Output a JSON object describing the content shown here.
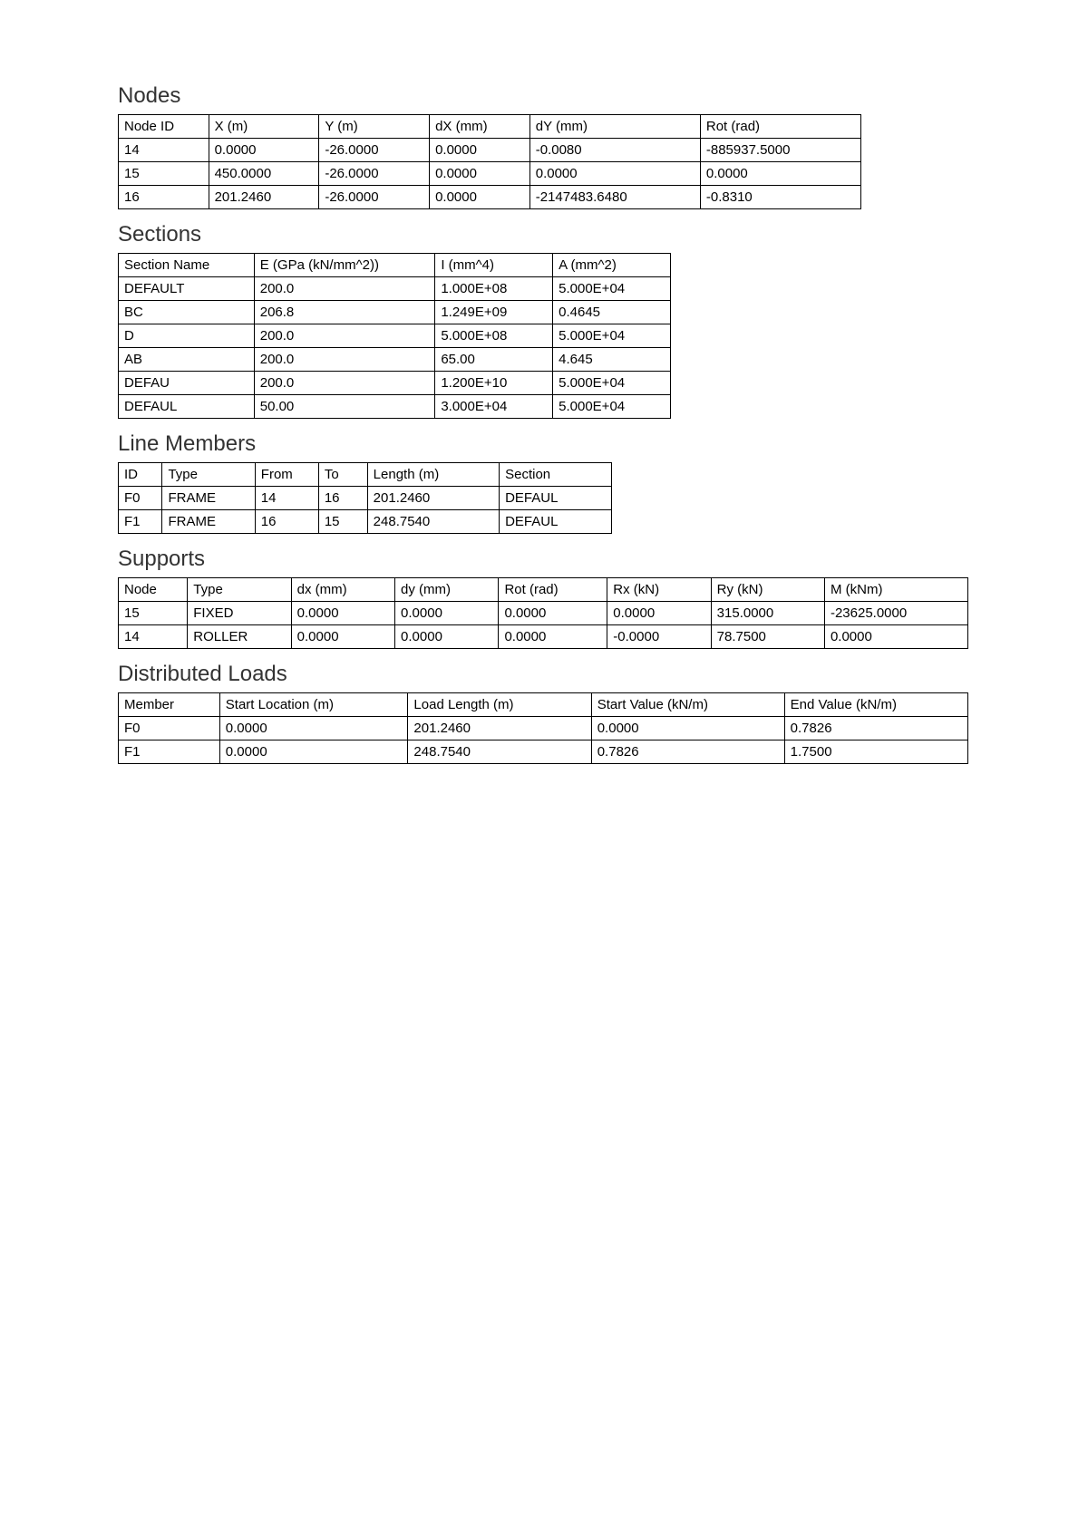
{
  "nodes": {
    "title": "Nodes",
    "headers": [
      "Node ID",
      "X (m)",
      "Y (m)",
      "dX (mm)",
      "dY (mm)",
      "Rot (rad)"
    ],
    "rows": [
      [
        "14",
        "0.0000",
        "-26.0000",
        "0.0000",
        "-0.0080",
        "-885937.5000"
      ],
      [
        "15",
        "450.0000",
        "-26.0000",
        "0.0000",
        "0.0000",
        "0.0000"
      ],
      [
        "16",
        "201.2460",
        "-26.0000",
        "0.0000",
        "-2147483.6480",
        "-0.8310"
      ]
    ]
  },
  "sections": {
    "title": "Sections",
    "headers": [
      "Section Name",
      "E (GPa (kN/mm^2))",
      "I (mm^4)",
      "A (mm^2)"
    ],
    "rows": [
      [
        "DEFAULT",
        "200.0",
        "1.000E+08",
        "5.000E+04"
      ],
      [
        "BC",
        "206.8",
        "1.249E+09",
        "0.4645"
      ],
      [
        "D",
        "200.0",
        "5.000E+08",
        "5.000E+04"
      ],
      [
        "AB",
        "200.0",
        "65.00",
        "4.645"
      ],
      [
        "DEFAU",
        "200.0",
        "1.200E+10",
        "5.000E+04"
      ],
      [
        "DEFAUL",
        "50.00",
        "3.000E+04",
        "5.000E+04"
      ]
    ]
  },
  "members": {
    "title": "Line Members",
    "headers": [
      "ID",
      "Type",
      "From",
      "To",
      "Length (m)",
      "Section"
    ],
    "rows": [
      [
        "F0",
        "FRAME",
        "14",
        "16",
        "201.2460",
        "DEFAUL"
      ],
      [
        "F1",
        "FRAME",
        "16",
        "15",
        "248.7540",
        "DEFAUL"
      ]
    ]
  },
  "supports": {
    "title": "Supports",
    "headers": [
      "Node",
      "Type",
      "dx (mm)",
      "dy (mm)",
      "Rot (rad)",
      "Rx (kN)",
      "Ry (kN)",
      "M (kNm)"
    ],
    "rows": [
      [
        "15",
        "FIXED",
        "0.0000",
        "0.0000",
        "0.0000",
        "0.0000",
        "315.0000",
        "-23625.0000"
      ],
      [
        "14",
        "ROLLER",
        "0.0000",
        "0.0000",
        "0.0000",
        "-0.0000",
        "78.7500",
        "0.0000"
      ]
    ]
  },
  "loads": {
    "title": "Distributed Loads",
    "headers": [
      "Member",
      "Start Location (m)",
      "Load Length (m)",
      "Start Value (kN/m)",
      "End Value (kN/m)"
    ],
    "rows": [
      [
        "F0",
        "0.0000",
        "201.2460",
        "0.0000",
        "0.7826"
      ],
      [
        "F1",
        "0.0000",
        "248.7540",
        "0.7826",
        "1.7500"
      ]
    ]
  }
}
